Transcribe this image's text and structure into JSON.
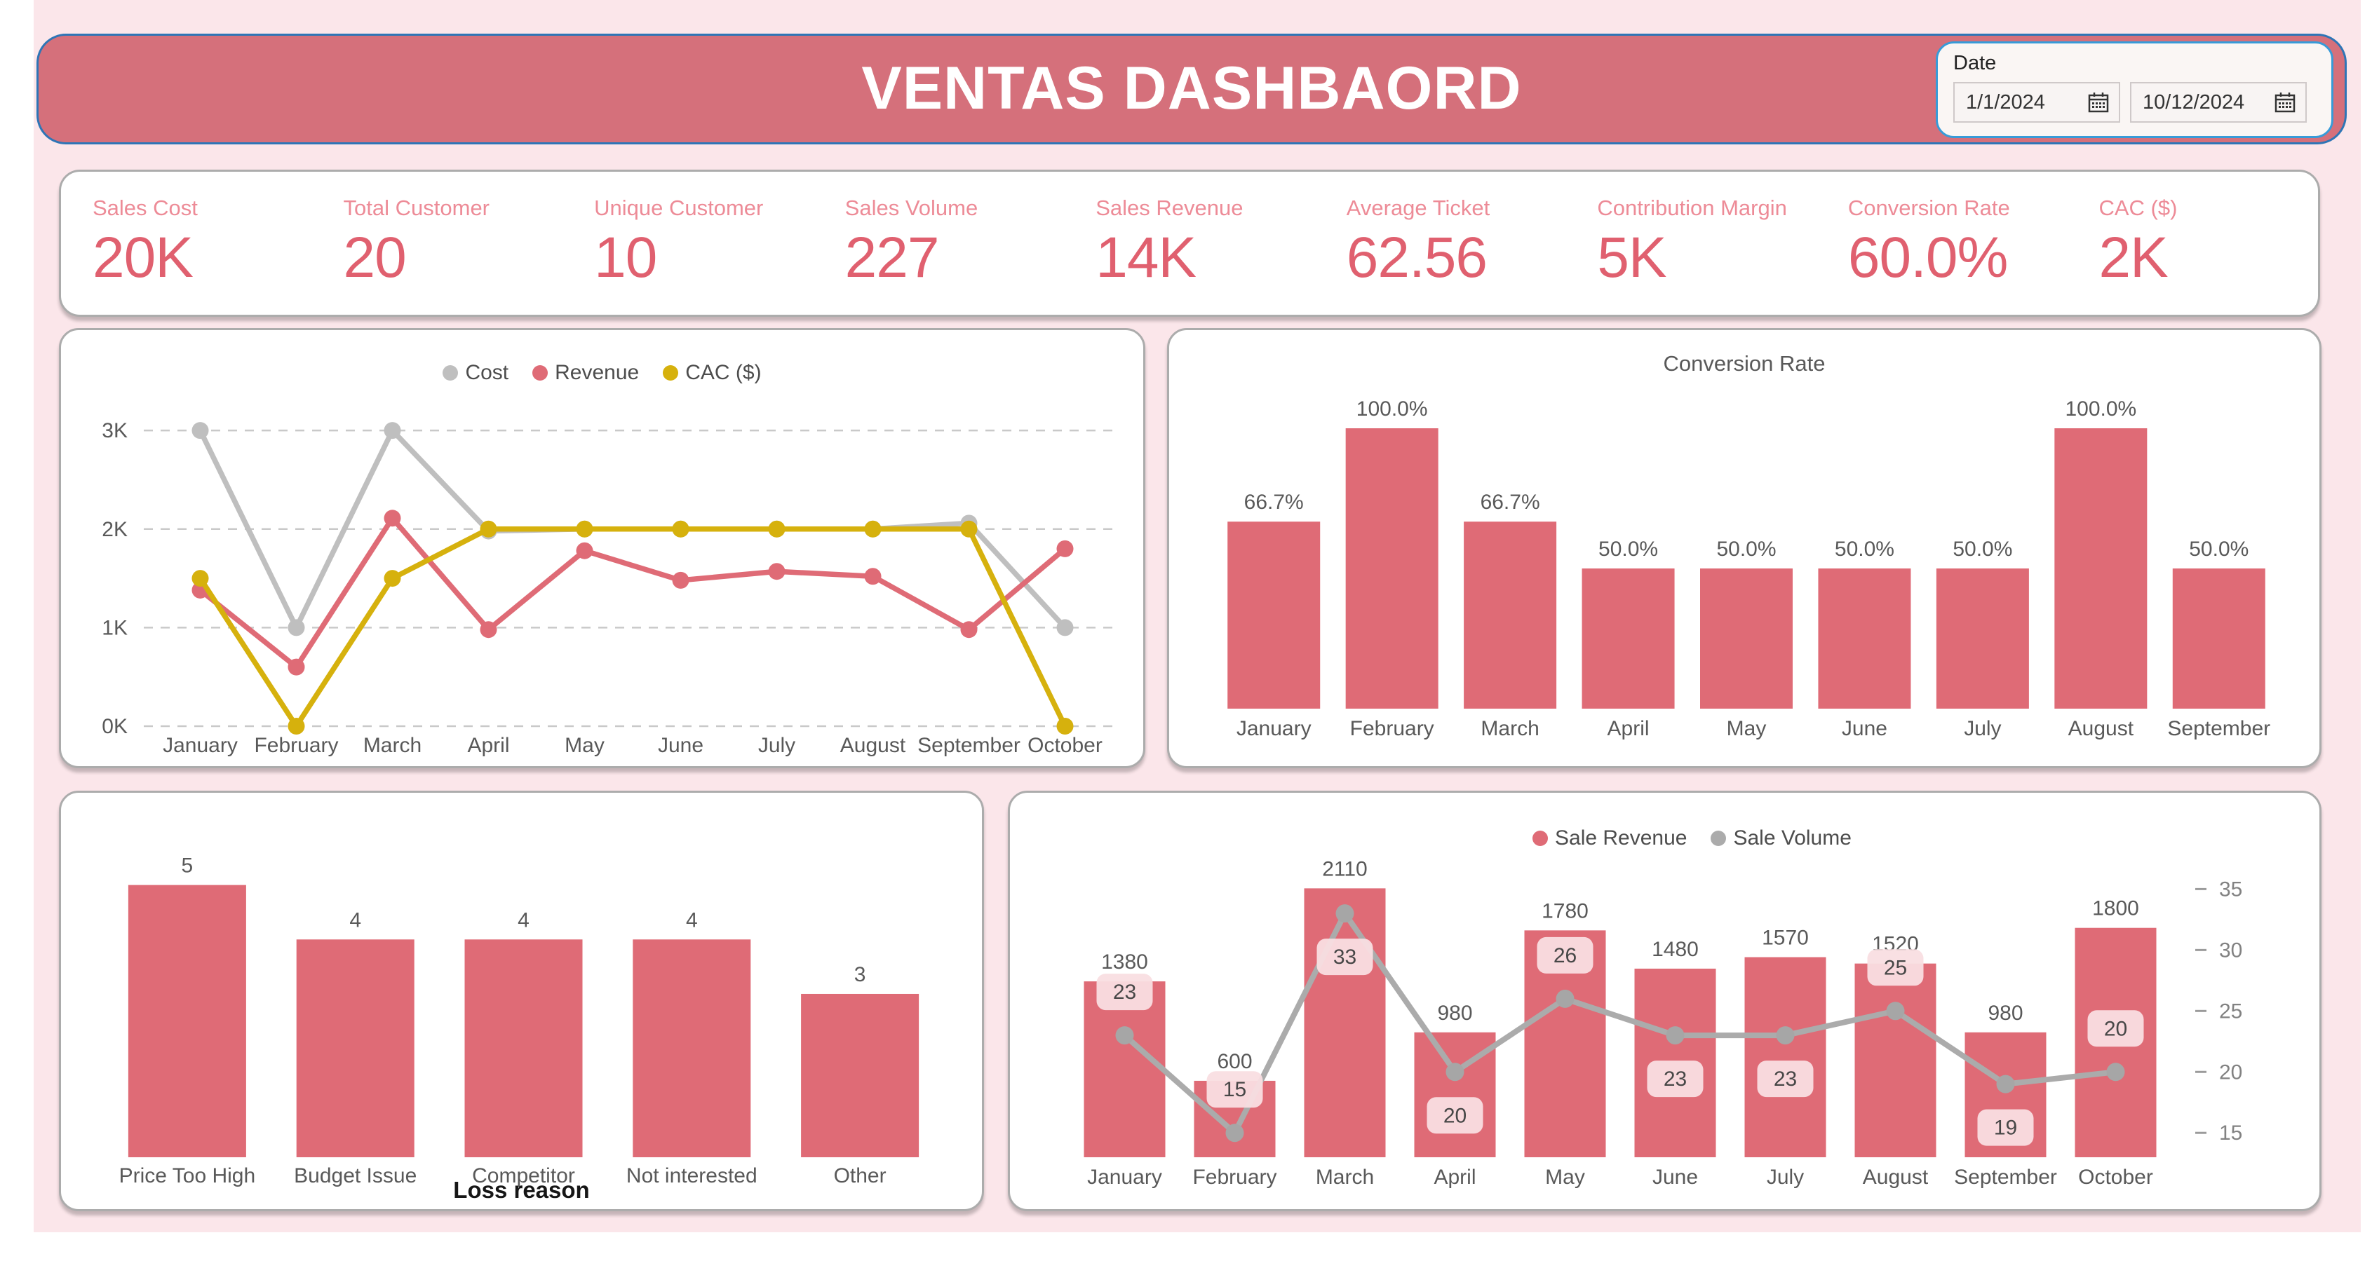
{
  "header": {
    "title": "VENTAS DASHBAORD",
    "date_slicer": {
      "label": "Date",
      "start_value": "1/1/2024",
      "end_value": "10/12/2024"
    }
  },
  "kpis": [
    {
      "label": "Sales Cost",
      "value": "20K"
    },
    {
      "label": "Total Customer",
      "value": "20"
    },
    {
      "label": "Unique Customer",
      "value": "10"
    },
    {
      "label": "Sales Volume",
      "value": "227"
    },
    {
      "label": "Sales Revenue",
      "value": "14K"
    },
    {
      "label": "Average Ticket",
      "value": "62.56"
    },
    {
      "label": "Contribution Margin",
      "value": "5K"
    },
    {
      "label": "Conversion Rate",
      "value": "60.0%"
    },
    {
      "label": "CAC ($)",
      "value": "2K"
    }
  ],
  "colors": {
    "accent_red": "#DF6B76",
    "banner_red": "#D5707B",
    "banner_border_blue": "#2E75B6",
    "slicer_border_blue": "#389BD8",
    "gold": "#D6B10D",
    "series_gray": "#ABABAB",
    "canvas_pink": "#FBE6EA",
    "pill_pink": "#F9DEE2"
  },
  "chart_data": [
    {
      "id": "cost_revenue_cac",
      "type": "line",
      "categories": [
        "January",
        "February",
        "March",
        "April",
        "May",
        "June",
        "July",
        "August",
        "September",
        "October"
      ],
      "series": [
        {
          "name": "Cost",
          "color": "#BFBFBF",
          "values": [
            3000,
            1000,
            3000,
            1980,
            2000,
            2000,
            2000,
            2000,
            2060,
            1000
          ]
        },
        {
          "name": "Revenue",
          "color": "#DF6B76",
          "values": [
            1380,
            600,
            2110,
            980,
            1780,
            1480,
            1570,
            1520,
            980,
            1800
          ]
        },
        {
          "name": "CAC ($)",
          "color": "#D6B10D",
          "values": [
            1500,
            0,
            1500,
            2000,
            2000,
            2000,
            2000,
            2000,
            2000,
            0
          ]
        }
      ],
      "y_ticks": [
        {
          "value": 0,
          "label": "0K"
        },
        {
          "value": 1000,
          "label": "1K"
        },
        {
          "value": 2000,
          "label": "2K"
        },
        {
          "value": 3000,
          "label": "3K"
        }
      ],
      "ylim": [
        0,
        3200
      ],
      "legend_position": "top-center",
      "grid": "horizontal-dashed"
    },
    {
      "id": "conversion_rate",
      "type": "bar",
      "title": "Conversion Rate",
      "categories": [
        "January",
        "February",
        "March",
        "April",
        "May",
        "June",
        "July",
        "August",
        "September"
      ],
      "values": [
        66.7,
        100.0,
        66.7,
        50.0,
        50.0,
        50.0,
        50.0,
        100.0,
        50.0
      ],
      "labels": [
        "66.7%",
        "100.0%",
        "66.7%",
        "50.0%",
        "50.0%",
        "50.0%",
        "50.0%",
        "100.0%",
        "50.0%"
      ],
      "ylim": [
        0,
        110
      ]
    },
    {
      "id": "loss_reason",
      "type": "bar",
      "categories": [
        "Price Too High",
        "Budget Issue",
        "Competitor",
        "Not interested",
        "Other"
      ],
      "values": [
        5,
        4,
        4,
        4,
        3
      ],
      "labels": [
        "5",
        "4",
        "4",
        "4",
        "3"
      ],
      "xlabel": "Loss reason",
      "ylim": [
        0,
        5.6
      ]
    },
    {
      "id": "revenue_volume",
      "type": "combo",
      "categories": [
        "January",
        "February",
        "March",
        "April",
        "May",
        "June",
        "July",
        "August",
        "September",
        "October"
      ],
      "bar_series": {
        "name": "Sale Revenue",
        "color": "#DF6B76",
        "values": [
          1380,
          600,
          2110,
          980,
          1780,
          1480,
          1570,
          1520,
          980,
          1800
        ],
        "labels": [
          "1380",
          "600",
          "2110",
          "980",
          "1780",
          "1480",
          "1570",
          "1520",
          "980",
          "1800"
        ]
      },
      "line_series": {
        "name": "Sale Volume",
        "color": "#ABABAB",
        "values": [
          23,
          15,
          33,
          20,
          26,
          23,
          23,
          25,
          19,
          20
        ],
        "labels": [
          "23",
          "15",
          "33",
          "20",
          "26",
          "23",
          "23",
          "25",
          "19",
          "20"
        ]
      },
      "right_axis": {
        "ticks": [
          15,
          20,
          25,
          30,
          35
        ],
        "lim": [
          13,
          36
        ]
      },
      "bar_ylim": [
        0,
        2200
      ],
      "legend_position": "top-right"
    }
  ]
}
